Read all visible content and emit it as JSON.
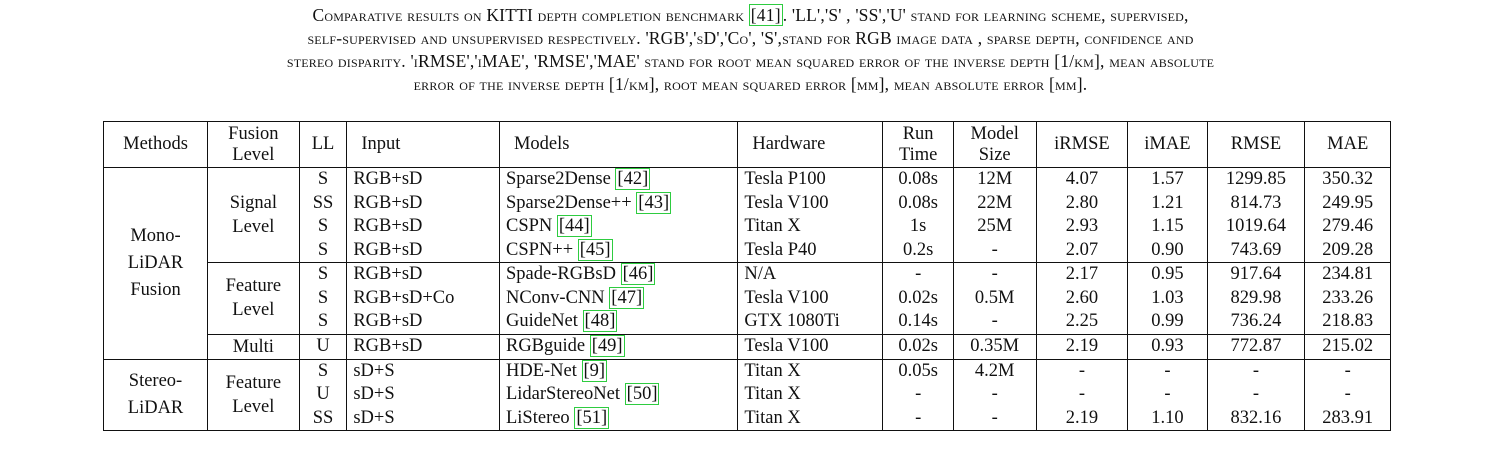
{
  "caption": {
    "lines": [
      [
        "Comparative results on KITTI depth completion benchmark ",
        "[41]",
        ". 'LL','S' , 'SS','U' stand for learning scheme, supervised,"
      ],
      [
        "self-supervised and unsupervised respectively. 'RGB','sD','Co', 'S',stand for RGB image data , sparse depth, confidence and",
        "",
        ""
      ],
      [
        "stereo disparity. 'iRMSE','iMAE', 'RMSE','MAE' stand for root mean squared error of the inverse depth [1/km], mean absolute",
        "",
        ""
      ],
      [
        "error of the inverse depth [1/km], root mean squared error [mm], mean absolute error [mm].",
        "",
        ""
      ]
    ]
  },
  "table": {
    "headers": [
      [
        "Methods"
      ],
      [
        "Fusion",
        "Level"
      ],
      [
        "LL"
      ],
      [
        "Input"
      ],
      [
        "Models"
      ],
      [
        "Hardware"
      ],
      [
        "Run",
        "Time"
      ],
      [
        "Model",
        "Size"
      ],
      [
        "iRMSE"
      ],
      [
        "iMAE"
      ],
      [
        "RMSE"
      ],
      [
        "MAE"
      ]
    ],
    "groups": [
      {
        "method": [
          "Mono-",
          "LiDAR",
          "Fusion"
        ],
        "fusions": [
          {
            "level": [
              "Signal",
              "Level"
            ],
            "rows": [
              {
                "ll": "S",
                "input": "RGB+sD",
                "model": "Sparse2Dense",
                "ref": "[42]",
                "hardware": "Tesla P100",
                "run_time": "0.08s",
                "model_size": "12M",
                "irmse": "4.07",
                "imae": "1.57",
                "rmse": "1299.85",
                "mae": "350.32"
              },
              {
                "ll": "SS",
                "input": "RGB+sD",
                "model": "Sparse2Dense++",
                "ref": "[43]",
                "hardware": "Tesla V100",
                "run_time": "0.08s",
                "model_size": "22M",
                "irmse": "2.80",
                "imae": "1.21",
                "rmse": "814.73",
                "mae": "249.95"
              },
              {
                "ll": "S",
                "input": "RGB+sD",
                "model": "CSPN",
                "ref": "[44]",
                "hardware": "Titan X",
                "run_time": "1s",
                "model_size": "25M",
                "irmse": "2.93",
                "imae": "1.15",
                "rmse": "1019.64",
                "mae": "279.46"
              },
              {
                "ll": "S",
                "input": "RGB+sD",
                "model": "CSPN++",
                "ref": "[45]",
                "hardware": "Tesla P40",
                "run_time": "0.2s",
                "model_size": "-",
                "irmse": "2.07",
                "imae": "0.90",
                "rmse": "743.69",
                "mae": "209.28"
              }
            ]
          },
          {
            "level": [
              "Feature",
              "Level"
            ],
            "rows": [
              {
                "ll": "S",
                "input": "RGB+sD",
                "model": "Spade-RGBsD",
                "ref": "[46]",
                "hardware": "N/A",
                "run_time": "-",
                "model_size": "-",
                "irmse": "2.17",
                "imae": "0.95",
                "rmse": "917.64",
                "mae": "234.81"
              },
              {
                "ll": "S",
                "input": "RGB+sD+Co",
                "model": "NConv-CNN",
                "ref": "[47]",
                "hardware": "Tesla V100",
                "run_time": "0.02s",
                "model_size": "0.5M",
                "irmse": "2.60",
                "imae": "1.03",
                "rmse": "829.98",
                "mae": "233.26"
              },
              {
                "ll": "S",
                "input": "RGB+sD",
                "model": "GuideNet",
                "ref": "[48]",
                "hardware": "GTX 1080Ti",
                "run_time": "0.14s",
                "model_size": "-",
                "irmse": "2.25",
                "imae": "0.99",
                "rmse": "736.24",
                "mae": "218.83"
              }
            ]
          },
          {
            "level": [
              "Multi"
            ],
            "rows": [
              {
                "ll": "U",
                "input": "RGB+sD",
                "model": "RGBguide",
                "ref": "[49]",
                "hardware": "Tesla V100",
                "run_time": "0.02s",
                "model_size": "0.35M",
                "irmse": "2.19",
                "imae": "0.93",
                "rmse": "772.87",
                "mae": "215.02"
              }
            ]
          }
        ]
      },
      {
        "method": [
          "Stereo-",
          "LiDAR"
        ],
        "fusions": [
          {
            "level": [
              "Feature",
              "Level"
            ],
            "rows": [
              {
                "ll": "S",
                "input": "sD+S",
                "model": "HDE-Net",
                "ref": "[9]",
                "hardware": "Titan X",
                "run_time": "0.05s",
                "model_size": "4.2M",
                "irmse": "-",
                "imae": "-",
                "rmse": "-",
                "mae": "-"
              },
              {
                "ll": "U",
                "input": "sD+S",
                "model": "LidarStereoNet",
                "ref": "[50]",
                "hardware": "Titan X",
                "run_time": "-",
                "model_size": "-",
                "irmse": "-",
                "imae": "-",
                "rmse": "-",
                "mae": "-"
              },
              {
                "ll": "SS",
                "input": "sD+S",
                "model": "LiStereo",
                "ref": "[51]",
                "hardware": "Titan X",
                "run_time": "-",
                "model_size": "-",
                "irmse": "2.19",
                "imae": "1.10",
                "rmse": "832.16",
                "mae": "283.91"
              }
            ]
          }
        ]
      }
    ]
  },
  "colors": {
    "citation_box": "#2ecc40",
    "rule": "#111111"
  }
}
